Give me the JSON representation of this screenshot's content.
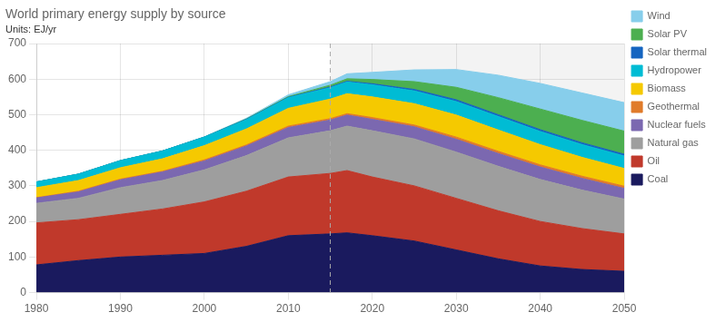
{
  "chart_data": {
    "type": "area",
    "title": "World primary energy supply by source",
    "subtitle": "Units: EJ/yr",
    "x": [
      1980,
      1985,
      1990,
      1995,
      2000,
      2005,
      2010,
      2015,
      2017,
      2020,
      2025,
      2030,
      2035,
      2040,
      2045,
      2050
    ],
    "series": [
      {
        "name": "Coal",
        "color": "#1a1a5e",
        "values": [
          78,
          90,
          100,
          105,
          110,
          130,
          160,
          165,
          168,
          160,
          145,
          120,
          95,
          75,
          65,
          60
        ]
      },
      {
        "name": "Oil",
        "color": "#c0392b",
        "values": [
          118,
          115,
          120,
          130,
          145,
          155,
          165,
          170,
          175,
          165,
          155,
          145,
          135,
          125,
          115,
          105
        ]
      },
      {
        "name": "Natural gas",
        "color": "#9e9e9e",
        "values": [
          55,
          60,
          75,
          80,
          90,
          100,
          110,
          120,
          125,
          130,
          132,
          130,
          125,
          118,
          108,
          98
        ]
      },
      {
        "name": "Nuclear fuels",
        "color": "#7b68b0",
        "values": [
          15,
          18,
          22,
          24,
          25,
          27,
          29,
          30,
          31,
          32,
          34,
          36,
          36,
          35,
          33,
          30
        ]
      },
      {
        "name": "Geothermal",
        "color": "#e07b2a",
        "values": [
          1,
          2,
          2,
          2,
          3,
          3,
          4,
          4,
          4,
          5,
          5,
          6,
          6,
          6,
          6,
          6
        ]
      },
      {
        "name": "Biomass",
        "color": "#f5c900",
        "values": [
          28,
          30,
          32,
          35,
          40,
          45,
          50,
          55,
          56,
          58,
          60,
          62,
          60,
          57,
          53,
          50
        ]
      },
      {
        "name": "Hydropower",
        "color": "#00bcd4",
        "values": [
          16,
          18,
          20,
          22,
          24,
          26,
          30,
          32,
          33,
          34,
          36,
          38,
          38,
          37,
          36,
          35
        ]
      },
      {
        "name": "Solar thermal",
        "color": "#1565c0",
        "values": [
          0,
          0,
          0,
          0,
          0,
          1,
          1,
          2,
          2,
          3,
          4,
          5,
          5,
          5,
          5,
          5
        ]
      },
      {
        "name": "Solar PV",
        "color": "#4caf50",
        "values": [
          0,
          0,
          0,
          0,
          0,
          1,
          2,
          5,
          7,
          12,
          22,
          35,
          48,
          58,
          63,
          65
        ]
      },
      {
        "name": "Wind",
        "color": "#87ceeb",
        "values": [
          0,
          0,
          0,
          0,
          1,
          2,
          5,
          10,
          14,
          20,
          33,
          50,
          63,
          72,
          77,
          80
        ]
      }
    ],
    "xlim": [
      1980,
      2050
    ],
    "xticks": [
      1980,
      1990,
      2000,
      2010,
      2020,
      2030,
      2040,
      2050
    ],
    "ylim": [
      0,
      700
    ],
    "yticks": [
      0,
      100,
      200,
      300,
      400,
      500,
      600,
      700
    ],
    "stacked": true,
    "grid": true,
    "legend": "right",
    "shade": [
      2015,
      2050
    ],
    "vline": 2015
  }
}
